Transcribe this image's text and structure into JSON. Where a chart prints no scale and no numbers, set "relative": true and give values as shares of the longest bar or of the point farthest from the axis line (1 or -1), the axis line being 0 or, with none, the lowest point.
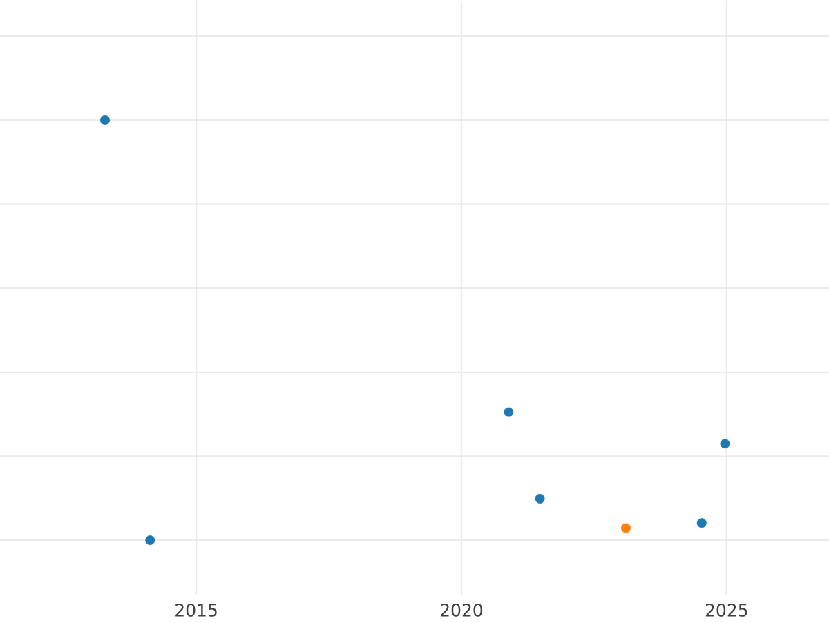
{
  "chart_data": {
    "type": "scatter",
    "relative": true,
    "xlim": [
      2011.3,
      2026.93
    ],
    "xticks": [
      2015,
      2020,
      2025
    ],
    "grid": true,
    "series": [
      {
        "color": "#1f77b4",
        "x": [
          2013.28,
          2014.13,
          2020.89,
          2021.48,
          2024.53,
          2024.97
        ],
        "values": [
          1,
          0,
          0.305,
          0.099,
          0.041,
          0.23
        ]
      },
      {
        "color": "#ff7f0e",
        "x": [
          2023.1
        ],
        "values": [
          0.029
        ]
      }
    ]
  }
}
